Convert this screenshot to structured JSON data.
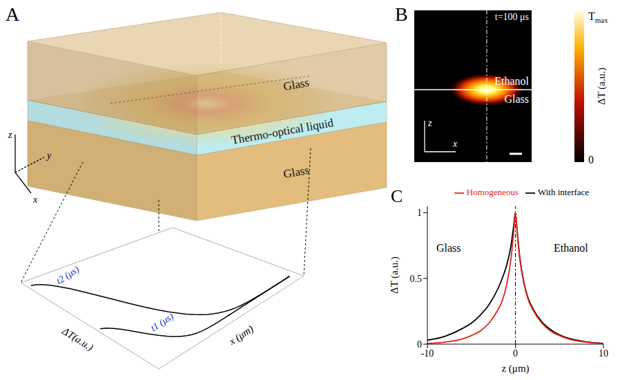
{
  "panel_A": {
    "letter": "A",
    "layers": [
      "Glass",
      "Thermo-optical liquid",
      "Glass"
    ],
    "axes": [
      "x",
      "y",
      "z"
    ],
    "inset": {
      "curve_labels": [
        "t1 (μs)",
        "t2 (μs)"
      ],
      "y_label": "ΔT(a.u.)",
      "x_label": "x (μm)"
    }
  },
  "panel_B": {
    "letter": "B",
    "time_label": "t=100 μs",
    "media": [
      "Ethanol",
      "Glass"
    ],
    "axes": [
      "x",
      "z"
    ],
    "colorbar": {
      "title": "ΔT (a.u.)",
      "max_label": {
        "text": "T",
        "subscript": "max"
      },
      "min_label": "0"
    }
  },
  "chart_data": {
    "panel_letter": "C",
    "type": "line",
    "x_label": "z (μm)",
    "y_label": "ΔT (a.u.)",
    "annotations": [
      "Glass",
      "Ethanol"
    ],
    "interface_z": 0,
    "legend": "top",
    "xlim": [
      -10,
      10
    ],
    "ylim": [
      0,
      1.05
    ],
    "xticks": [
      -10,
      0,
      10
    ],
    "yticks": [
      0,
      0.5,
      1
    ],
    "x": [
      -10,
      -8,
      -6,
      -5,
      -4,
      -3,
      -2,
      -1.5,
      -1,
      -0.5,
      -0.2,
      0,
      0.2,
      0.5,
      1,
      1.5,
      2,
      3,
      4,
      5,
      6,
      8,
      10
    ],
    "series": [
      {
        "name": "With interface",
        "color": "#000000",
        "values": [
          0.03,
          0.06,
          0.12,
          0.16,
          0.22,
          0.3,
          0.42,
          0.5,
          0.6,
          0.75,
          0.9,
          1.0,
          0.86,
          0.66,
          0.46,
          0.34,
          0.27,
          0.17,
          0.11,
          0.07,
          0.045,
          0.018,
          0.006
        ]
      },
      {
        "name": "Homogeneous",
        "color": "#e0241c",
        "values": [
          0.005,
          0.015,
          0.04,
          0.065,
          0.1,
          0.16,
          0.26,
          0.33,
          0.45,
          0.65,
          0.85,
          1.0,
          0.85,
          0.65,
          0.45,
          0.33,
          0.26,
          0.16,
          0.1,
          0.065,
          0.04,
          0.015,
          0.005
        ]
      }
    ]
  }
}
